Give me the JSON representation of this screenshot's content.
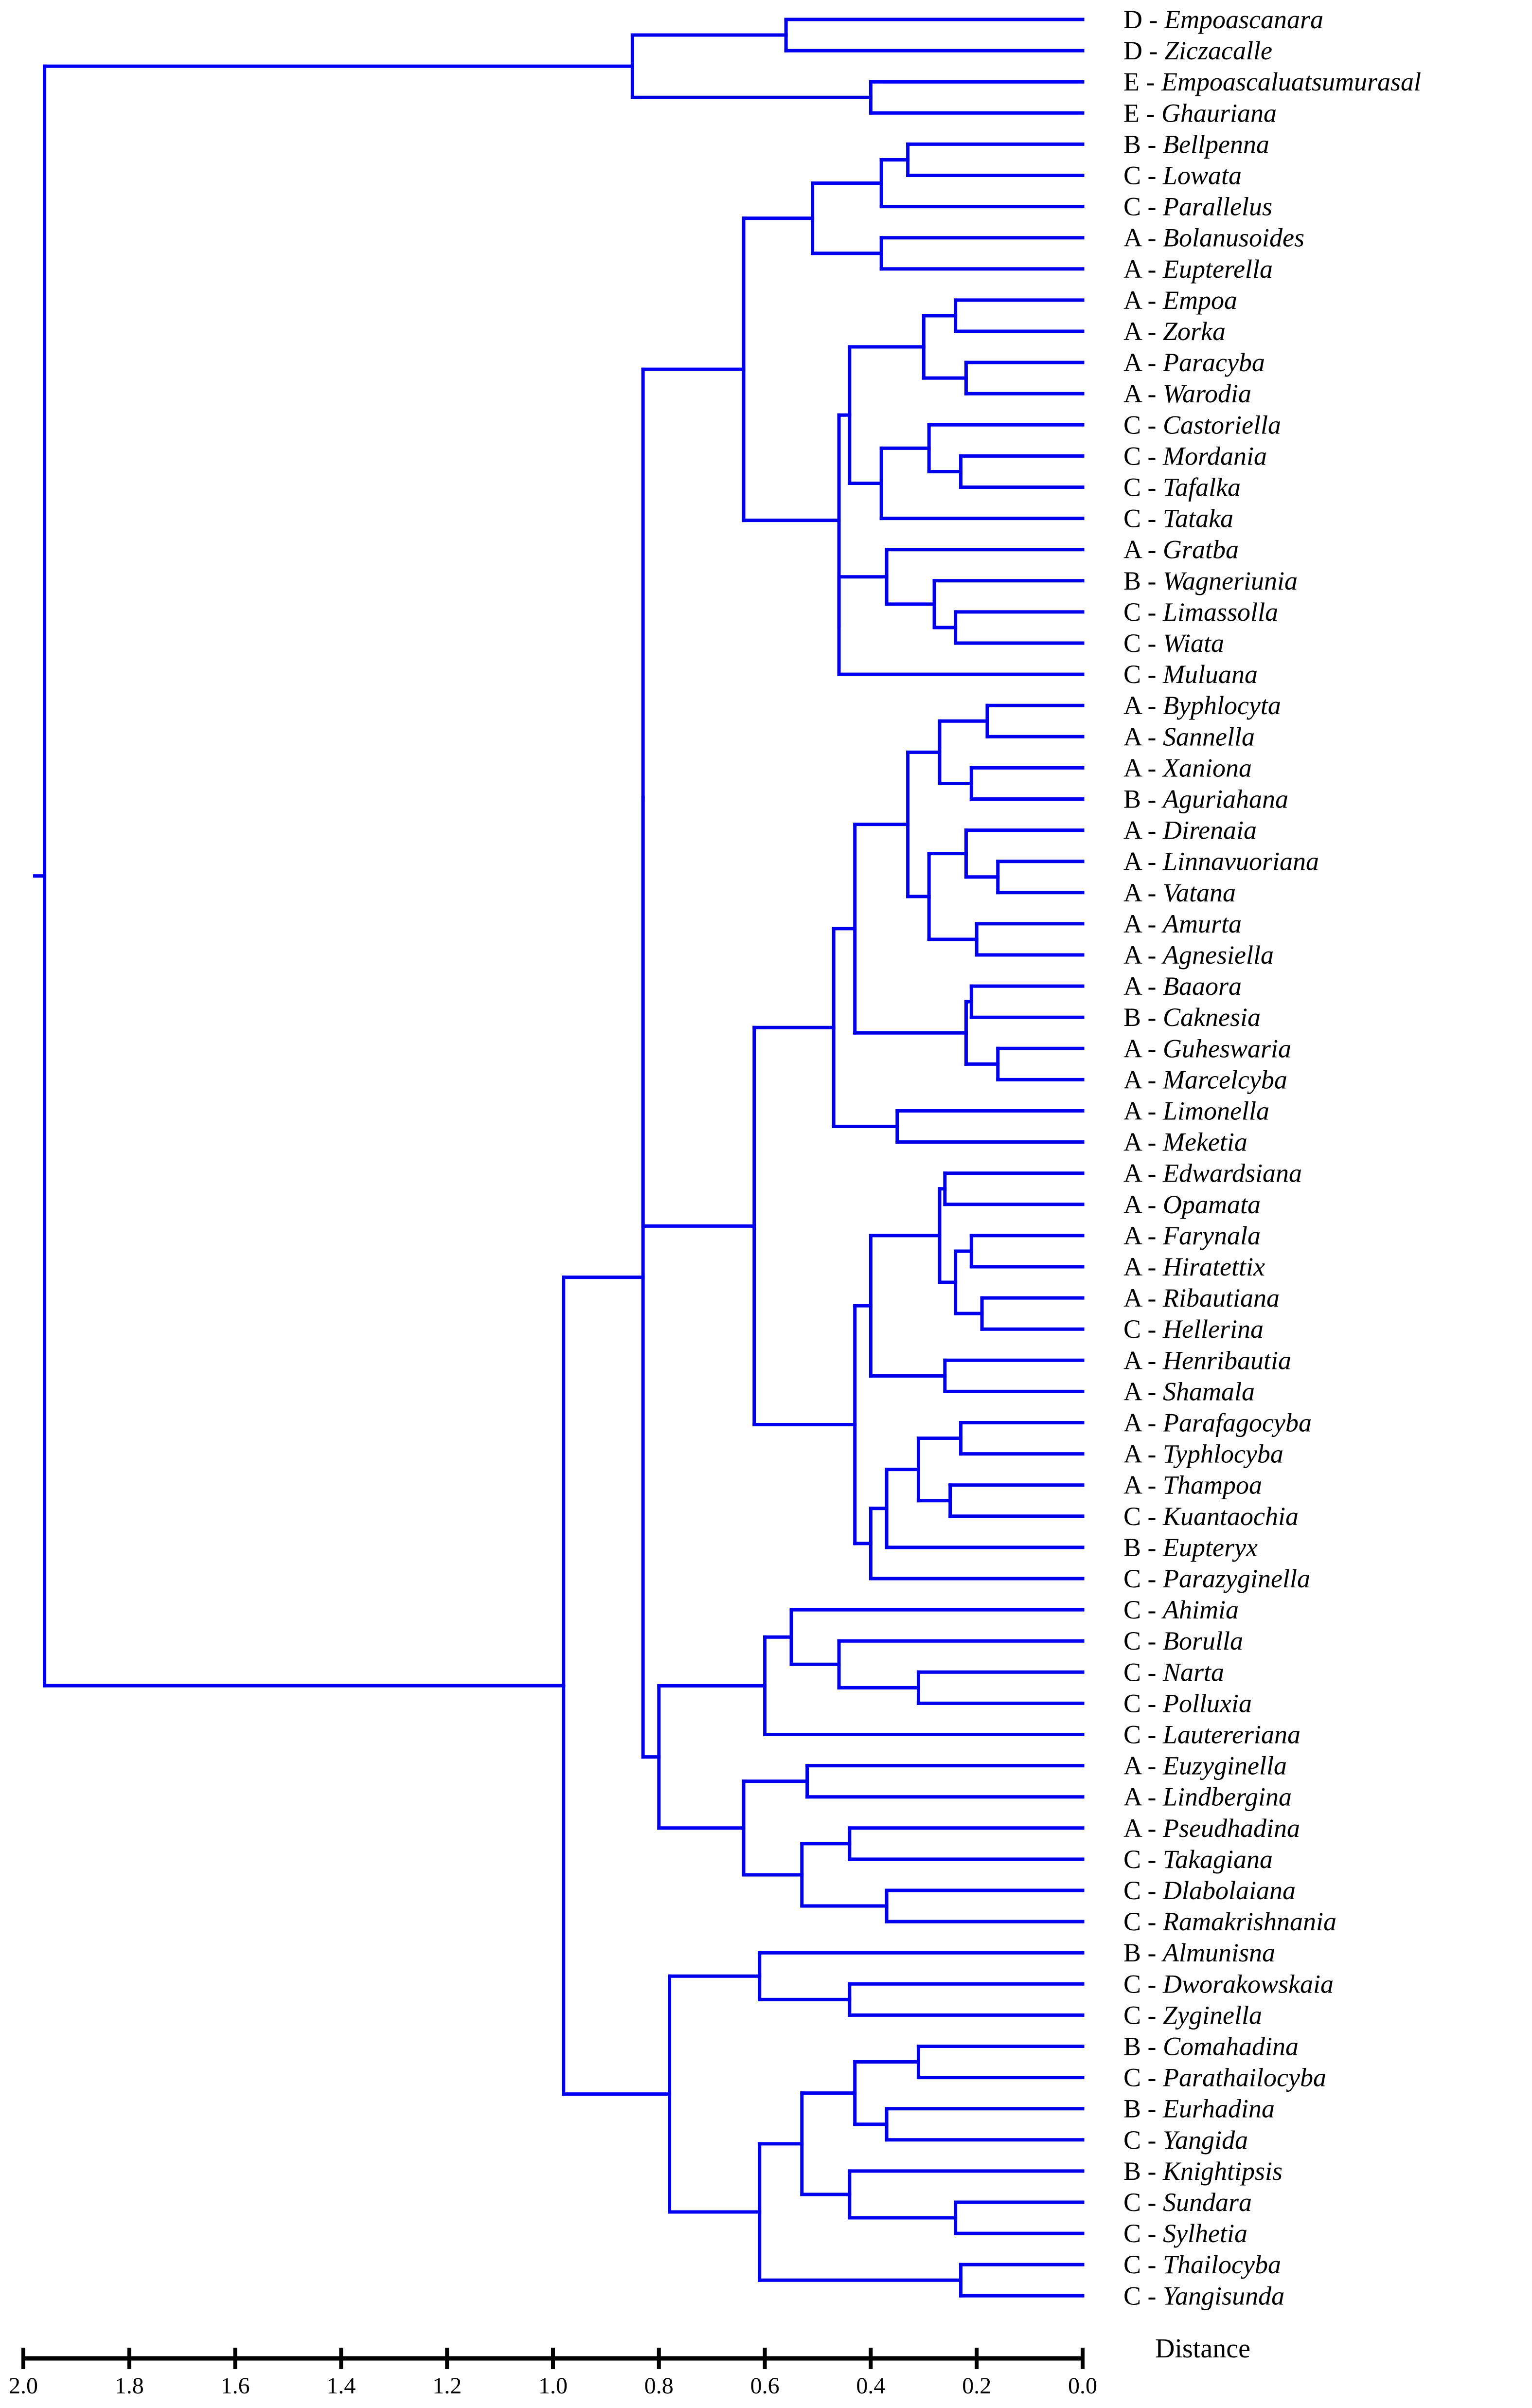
{
  "axis": {
    "title": "Distance",
    "range": [
      0.0,
      2.0
    ],
    "ticks": [
      2.0,
      1.8,
      1.6,
      1.4,
      1.2,
      1.0,
      0.8,
      0.6,
      0.4,
      0.2,
      0.0
    ],
    "tick_labels": [
      "2.0",
      "1.8",
      "1.6",
      "1.4",
      "1.2",
      "1.0",
      "0.8",
      "0.6",
      "0.4",
      "0.2",
      "0.0"
    ]
  },
  "colors": {
    "tree": "#0000ee",
    "text": "#000000",
    "axis": "#000000"
  },
  "leaves": [
    {
      "group": "D",
      "genus": "Empoascanara"
    },
    {
      "group": "D",
      "genus": "Ziczacalle"
    },
    {
      "group": "E",
      "genus": "Empoascaluatsumurasal"
    },
    {
      "group": "E",
      "genus": "Ghauriana"
    },
    {
      "group": "B",
      "genus": "Bellpenna"
    },
    {
      "group": "C",
      "genus": "Lowata"
    },
    {
      "group": "C",
      "genus": "Parallelus"
    },
    {
      "group": "A",
      "genus": "Bolanusoides"
    },
    {
      "group": "A",
      "genus": "Eupterella"
    },
    {
      "group": "A",
      "genus": "Empoa"
    },
    {
      "group": "A",
      "genus": "Zorka"
    },
    {
      "group": "A",
      "genus": "Paracyba"
    },
    {
      "group": "A",
      "genus": "Warodia"
    },
    {
      "group": "C",
      "genus": "Castoriella"
    },
    {
      "group": "C",
      "genus": "Mordania"
    },
    {
      "group": "C",
      "genus": "Tafalka"
    },
    {
      "group": "C",
      "genus": "Tataka"
    },
    {
      "group": "A",
      "genus": "Gratba"
    },
    {
      "group": "B",
      "genus": "Wagneriunia"
    },
    {
      "group": "C",
      "genus": "Limassolla"
    },
    {
      "group": "C",
      "genus": "Wiata"
    },
    {
      "group": "C",
      "genus": "Muluana"
    },
    {
      "group": "A",
      "genus": "Byphlocyta"
    },
    {
      "group": "A",
      "genus": "Sannella"
    },
    {
      "group": "A",
      "genus": "Xaniona"
    },
    {
      "group": "B",
      "genus": "Aguriahana"
    },
    {
      "group": "A",
      "genus": "Direnaia"
    },
    {
      "group": "A",
      "genus": "Linnavuoriana"
    },
    {
      "group": "A",
      "genus": "Vatana"
    },
    {
      "group": "A",
      "genus": "Amurta"
    },
    {
      "group": "A",
      "genus": "Agnesiella"
    },
    {
      "group": "A",
      "genus": "Baaora"
    },
    {
      "group": "B",
      "genus": "Caknesia"
    },
    {
      "group": "A",
      "genus": "Guheswaria"
    },
    {
      "group": "A",
      "genus": "Marcelcyba"
    },
    {
      "group": "A",
      "genus": "Limonella"
    },
    {
      "group": "A",
      "genus": "Meketia"
    },
    {
      "group": "A",
      "genus": "Edwardsiana"
    },
    {
      "group": "A",
      "genus": "Opamata"
    },
    {
      "group": "A",
      "genus": "Farynala"
    },
    {
      "group": "A",
      "genus": "Hiratettix"
    },
    {
      "group": "A",
      "genus": "Ribautiana"
    },
    {
      "group": "C",
      "genus": "Hellerina"
    },
    {
      "group": "A",
      "genus": "Henribautia"
    },
    {
      "group": "A",
      "genus": "Shamala"
    },
    {
      "group": "A",
      "genus": "Parafagocyba"
    },
    {
      "group": "A",
      "genus": "Typhlocyba"
    },
    {
      "group": "A",
      "genus": "Thampoa"
    },
    {
      "group": "C",
      "genus": "Kuantaochia"
    },
    {
      "group": "B",
      "genus": "Eupteryx"
    },
    {
      "group": "C",
      "genus": "Parazyginella"
    },
    {
      "group": "C",
      "genus": "Ahimia"
    },
    {
      "group": "C",
      "genus": "Borulla"
    },
    {
      "group": "C",
      "genus": "Narta"
    },
    {
      "group": "C",
      "genus": "Polluxia"
    },
    {
      "group": "C",
      "genus": "Lautereriana"
    },
    {
      "group": "A",
      "genus": "Euzyginella"
    },
    {
      "group": "A",
      "genus": "Lindbergina"
    },
    {
      "group": "A",
      "genus": "Pseudhadina"
    },
    {
      "group": "C",
      "genus": "Takagiana"
    },
    {
      "group": "C",
      "genus": "Dlabolaiana"
    },
    {
      "group": "C",
      "genus": "Ramakrishnania"
    },
    {
      "group": "B",
      "genus": "Almunisna"
    },
    {
      "group": "C",
      "genus": "Dworakowskaia"
    },
    {
      "group": "C",
      "genus": "Zyginella"
    },
    {
      "group": "B",
      "genus": "Comahadina"
    },
    {
      "group": "C",
      "genus": "Parathailocyba"
    },
    {
      "group": "B",
      "genus": "Eurhadina"
    },
    {
      "group": "C",
      "genus": "Yangida"
    },
    {
      "group": "B",
      "genus": "Knightipsis"
    },
    {
      "group": "C",
      "genus": "Sundara"
    },
    {
      "group": "C",
      "genus": "Sylhetia"
    },
    {
      "group": "C",
      "genus": "Thailocyba"
    },
    {
      "group": "C",
      "genus": "Yangisunda"
    }
  ],
  "tree": {
    "h": 1.96,
    "c": [
      {
        "h": 0.85,
        "c": [
          {
            "h": 0.56,
            "c": [
              0,
              1
            ]
          },
          {
            "h": 0.4,
            "c": [
              2,
              3
            ]
          }
        ]
      },
      {
        "h": 0.98,
        "c": [
          {
            "h": 0.83,
            "c": [
              {
                "h": 0.83,
                "c": [
                  {
                    "h": 0.64,
                    "c": [
                      {
                        "h": 0.51,
                        "c": [
                          {
                            "h": 0.38,
                            "c": [
                              {
                                "h": 0.33,
                                "c": [
                                  4,
                                  5
                                ]
                              },
                              6
                            ]
                          },
                          {
                            "h": 0.38,
                            "c": [
                              7,
                              8
                            ]
                          }
                        ]
                      },
                      {
                        "h": 0.46,
                        "c": [
                          {
                            "h": 0.44,
                            "c": [
                              {
                                "h": 0.3,
                                "c": [
                                  {
                                    "h": 0.24,
                                    "c": [
                                      9,
                                      10
                                    ]
                                  },
                                  {
                                    "h": 0.22,
                                    "c": [
                                      11,
                                      12
                                    ]
                                  }
                                ]
                              },
                              {
                                "h": 0.38,
                                "c": [
                                  {
                                    "h": 0.29,
                                    "c": [
                                      13,
                                      {
                                        "h": 0.23,
                                        "c": [
                                          14,
                                          15
                                        ]
                                      }
                                    ]
                                  },
                                  16
                                ]
                              }
                            ]
                          },
                          {
                            "h": 0.46,
                            "c": [
                              {
                                "h": 0.37,
                                "c": [
                                  17,
                                  {
                                    "h": 0.28,
                                    "c": [
                                      18,
                                      {
                                        "h": 0.24,
                                        "c": [
                                          19,
                                          20
                                        ]
                                      }
                                    ]
                                  }
                                ]
                              },
                              21
                            ]
                          }
                        ]
                      }
                    ]
                  },
                  {
                    "h": 0.62,
                    "c": [
                      {
                        "h": 0.47,
                        "c": [
                          {
                            "h": 0.43,
                            "c": [
                              {
                                "h": 0.33,
                                "c": [
                                  {
                                    "h": 0.27,
                                    "c": [
                                      {
                                        "h": 0.18,
                                        "c": [
                                          22,
                                          23
                                        ]
                                      },
                                      {
                                        "h": 0.21,
                                        "c": [
                                          24,
                                          25
                                        ]
                                      }
                                    ]
                                  },
                                  {
                                    "h": 0.29,
                                    "c": [
                                      {
                                        "h": 0.22,
                                        "c": [
                                          26,
                                          {
                                            "h": 0.16,
                                            "c": [
                                              27,
                                              28
                                            ]
                                          }
                                        ]
                                      },
                                      {
                                        "h": 0.2,
                                        "c": [
                                          29,
                                          30
                                        ]
                                      }
                                    ]
                                  }
                                ]
                              },
                              {
                                "h": 0.22,
                                "c": [
                                  {
                                    "h": 0.21,
                                    "c": [
                                      31,
                                      32
                                    ]
                                  },
                                  {
                                    "h": 0.16,
                                    "c": [
                                      33,
                                      34
                                    ]
                                  }
                                ]
                              }
                            ]
                          },
                          {
                            "h": 0.35,
                            "c": [
                              35,
                              36
                            ]
                          }
                        ]
                      },
                      {
                        "h": 0.43,
                        "c": [
                          {
                            "h": 0.4,
                            "c": [
                              {
                                "h": 0.27,
                                "c": [
                                  {
                                    "h": 0.26,
                                    "c": [
                                      37,
                                      38
                                    ]
                                  },
                                  {
                                    "h": 0.24,
                                    "c": [
                                      {
                                        "h": 0.21,
                                        "c": [
                                          39,
                                          40
                                        ]
                                      },
                                      {
                                        "h": 0.19,
                                        "c": [
                                          41,
                                          42
                                        ]
                                      }
                                    ]
                                  }
                                ]
                              },
                              {
                                "h": 0.26,
                                "c": [
                                  43,
                                  44
                                ]
                              }
                            ]
                          },
                          {
                            "h": 0.4,
                            "c": [
                              {
                                "h": 0.37,
                                "c": [
                                  {
                                    "h": 0.31,
                                    "c": [
                                      {
                                        "h": 0.23,
                                        "c": [
                                          45,
                                          46
                                        ]
                                      },
                                      {
                                        "h": 0.25,
                                        "c": [
                                          47,
                                          48
                                        ]
                                      }
                                    ]
                                  },
                                  49
                                ]
                              },
                              50
                            ]
                          }
                        ]
                      }
                    ]
                  }
                ]
              },
              {
                "h": 0.8,
                "c": [
                  {
                    "h": 0.6,
                    "c": [
                      {
                        "h": 0.55,
                        "c": [
                          51,
                          {
                            "h": 0.46,
                            "c": [
                              52,
                              {
                                "h": 0.31,
                                "c": [
                                  53,
                                  54
                                ]
                              }
                            ]
                          }
                        ]
                      },
                      55
                    ]
                  },
                  {
                    "h": 0.64,
                    "c": [
                      {
                        "h": 0.52,
                        "c": [
                          56,
                          57
                        ]
                      },
                      {
                        "h": 0.53,
                        "c": [
                          {
                            "h": 0.44,
                            "c": [
                              58,
                              59
                            ]
                          },
                          {
                            "h": 0.37,
                            "c": [
                              60,
                              61
                            ]
                          }
                        ]
                      }
                    ]
                  }
                ]
              }
            ]
          },
          {
            "h": 0.78,
            "c": [
              {
                "h": 0.61,
                "c": [
                  62,
                  {
                    "h": 0.44,
                    "c": [
                      63,
                      64
                    ]
                  }
                ]
              },
              {
                "h": 0.61,
                "c": [
                  {
                    "h": 0.53,
                    "c": [
                      {
                        "h": 0.43,
                        "c": [
                          {
                            "h": 0.31,
                            "c": [
                              65,
                              66
                            ]
                          },
                          {
                            "h": 0.37,
                            "c": [
                              67,
                              68
                            ]
                          }
                        ]
                      },
                      {
                        "h": 0.44,
                        "c": [
                          69,
                          {
                            "h": 0.24,
                            "c": [
                              70,
                              71
                            ]
                          }
                        ]
                      }
                    ]
                  },
                  {
                    "h": 0.23,
                    "c": [
                      72,
                      73
                    ]
                  }
                ]
              }
            ]
          }
        ]
      }
    ]
  }
}
